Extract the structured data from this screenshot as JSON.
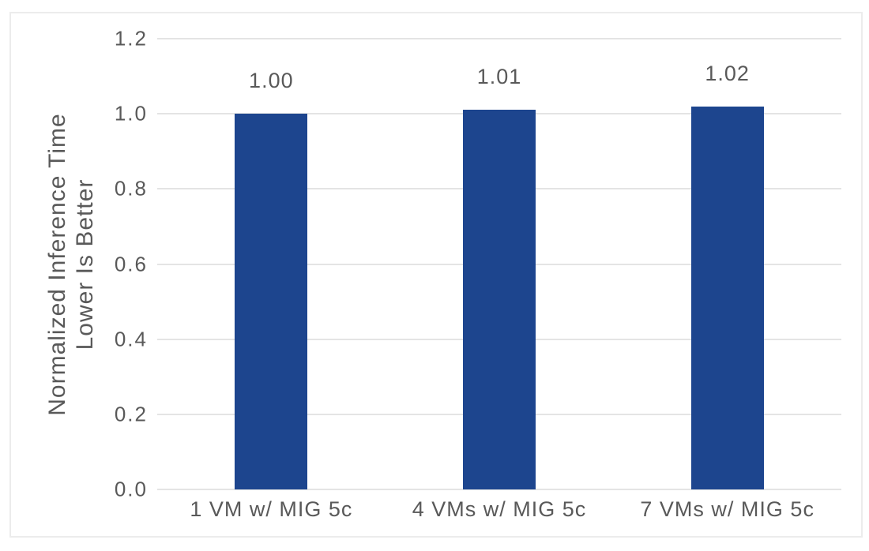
{
  "chart_data": {
    "type": "bar",
    "categories": [
      "1 VM w/ MIG 5c",
      "4 VMs w/ MIG 5c",
      "7 VMs w/ MIG 5c"
    ],
    "values": [
      1.0,
      1.01,
      1.02
    ],
    "value_labels": [
      "1.00",
      "1.01",
      "1.02"
    ],
    "title": "",
    "xlabel": "",
    "ylabel": "Normalized Inference Time Lower Is Better",
    "ylabel_line1": "Normalized Inference Time",
    "ylabel_line2": "Lower Is Better",
    "ylim": [
      0.0,
      1.2
    ],
    "yticks": [
      1.2,
      1.0,
      0.8,
      0.6,
      0.4,
      0.2,
      0.0
    ],
    "ytick_labels": [
      "1.2",
      "1.0",
      "0.8",
      "0.6",
      "0.4",
      "0.2",
      "0.0"
    ],
    "grid": true,
    "legend": "none",
    "bar_color": "#1d458e",
    "text_color": "#595959",
    "gridline_color": "#e4e4e4",
    "frame_border_color": "#ececec",
    "background_color": "#ffffff"
  }
}
